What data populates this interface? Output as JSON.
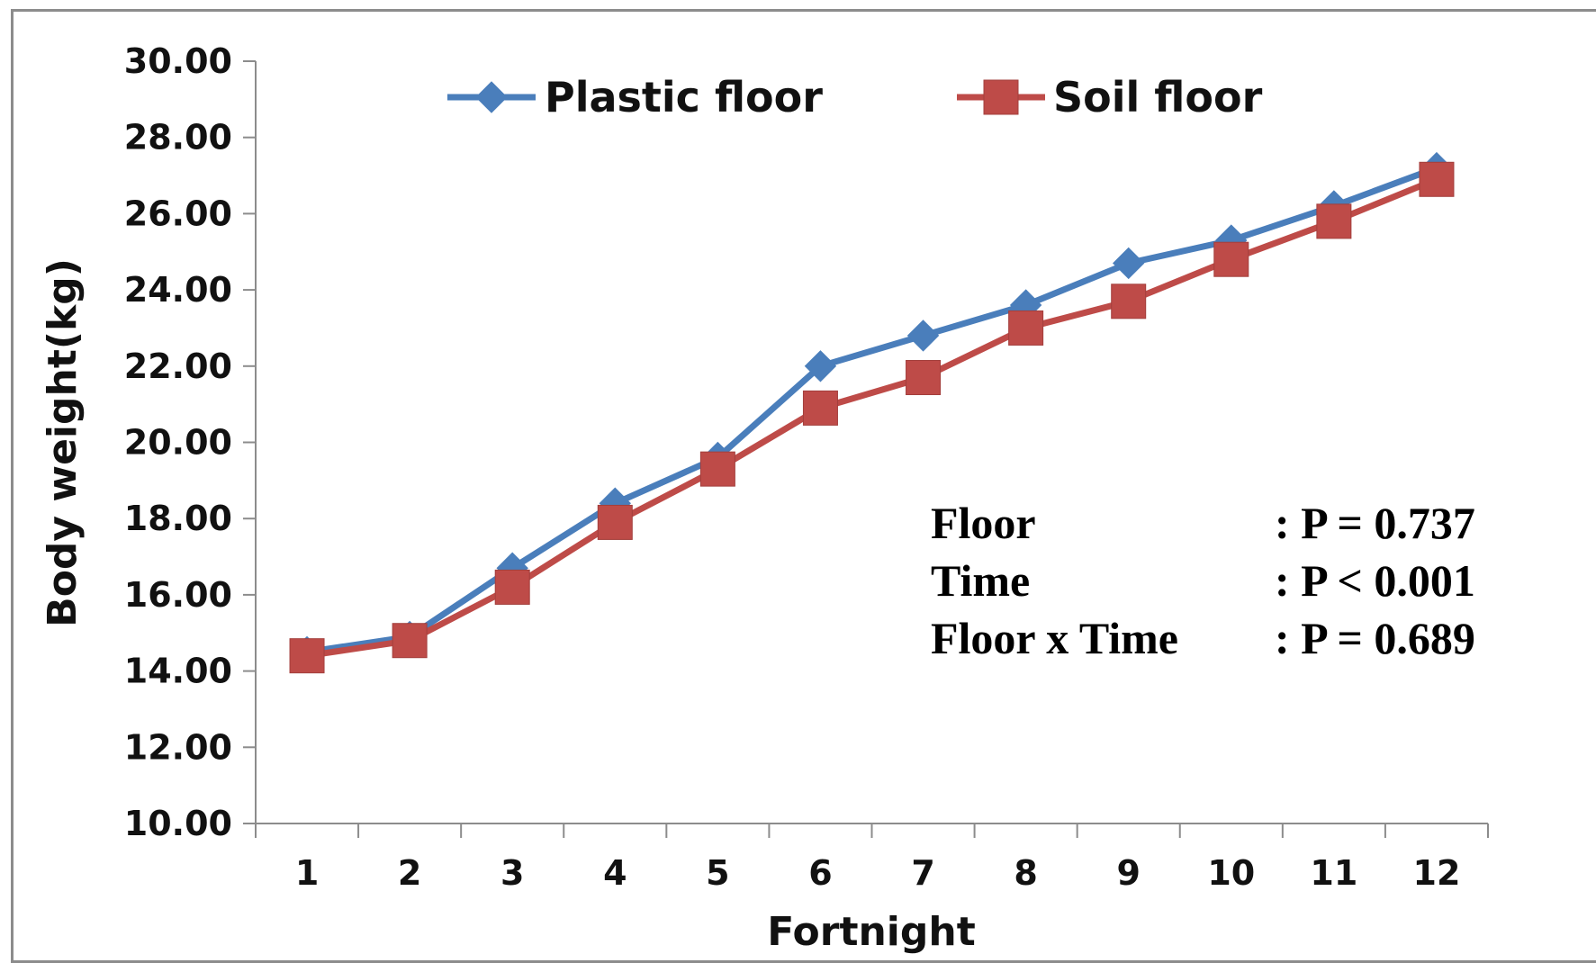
{
  "chart_data": {
    "type": "line",
    "title": "",
    "xlabel": "Fortnight",
    "ylabel": "Body weight(kg)",
    "categories": [
      "1",
      "2",
      "3",
      "4",
      "5",
      "6",
      "7",
      "8",
      "9",
      "10",
      "11",
      "12"
    ],
    "ylim": [
      10,
      30
    ],
    "y_ticks": [
      "10.00",
      "12.00",
      "14.00",
      "16.00",
      "18.00",
      "20.00",
      "22.00",
      "24.00",
      "26.00",
      "28.00",
      "30.00"
    ],
    "grid": false,
    "legend_position": "top",
    "series": [
      {
        "name": "Plastic floor",
        "color": "#4a7ebb",
        "marker": "diamond",
        "values": [
          14.5,
          14.9,
          16.7,
          18.4,
          19.6,
          22.0,
          22.8,
          23.6,
          24.7,
          25.3,
          26.2,
          27.2
        ]
      },
      {
        "name": "Soil floor",
        "color": "#be4b48",
        "marker": "square",
        "values": [
          14.4,
          14.8,
          16.2,
          17.9,
          19.3,
          20.9,
          21.7,
          23.0,
          23.7,
          24.8,
          25.8,
          26.9
        ]
      }
    ],
    "annotations": [
      {
        "label": "Floor",
        "value": ": P = 0.737"
      },
      {
        "label": "Time",
        "value": ": P < 0.001"
      },
      {
        "label": "Floor x Time",
        "value": ": P = 0.689"
      }
    ]
  }
}
